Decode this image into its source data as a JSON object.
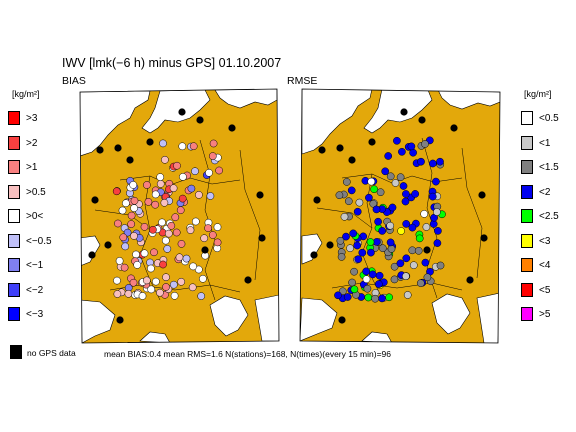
{
  "title": "IWV [lmk(−6 h) minus GPS] 01.10.2007",
  "panels": {
    "bias": {
      "label": "BIAS"
    },
    "rmse": {
      "label": "RMSE"
    }
  },
  "legend_left": {
    "unit": "[kg/m²]",
    "items": [
      {
        "label": ">3",
        "color": "#ff0000"
      },
      {
        "label": ">2",
        "color": "#f84040"
      },
      {
        "label": ">1",
        "color": "#f88080"
      },
      {
        "label": ">0.5",
        "color": "#f8c0c0"
      },
      {
        "label": ">0<",
        "color": "#ffffff"
      },
      {
        "label": "<−0.5",
        "color": "#c0c0f8"
      },
      {
        "label": "<−1",
        "color": "#8080f0"
      },
      {
        "label": "<−2",
        "color": "#4040f8"
      },
      {
        "label": "<−3",
        "color": "#0000ff"
      }
    ]
  },
  "legend_right": {
    "unit": "[kg/m²]",
    "items": [
      {
        "label": "<0.5",
        "color": "#ffffff"
      },
      {
        "label": "<1",
        "color": "#c8c8c8"
      },
      {
        "label": "<1.5",
        "color": "#808080"
      },
      {
        "label": "<2",
        "color": "#0000ee"
      },
      {
        "label": "<2.5",
        "color": "#00ff00"
      },
      {
        "label": "<3",
        "color": "#ffff00"
      },
      {
        "label": "<4",
        "color": "#ff8000"
      },
      {
        "label": "<5",
        "color": "#ff0000"
      },
      {
        "label": ">5",
        "color": "#ff00ff"
      }
    ]
  },
  "no_data": {
    "label": "no GPS data",
    "color": "#000000"
  },
  "stats": "mean BIAS:0.4  mean RMS=1.6  N(stations)=168, N(times)(every 15 min)=96",
  "colors": {
    "land": "#e3a80b",
    "sea": "#ffffff",
    "outline": "#000000"
  }
}
